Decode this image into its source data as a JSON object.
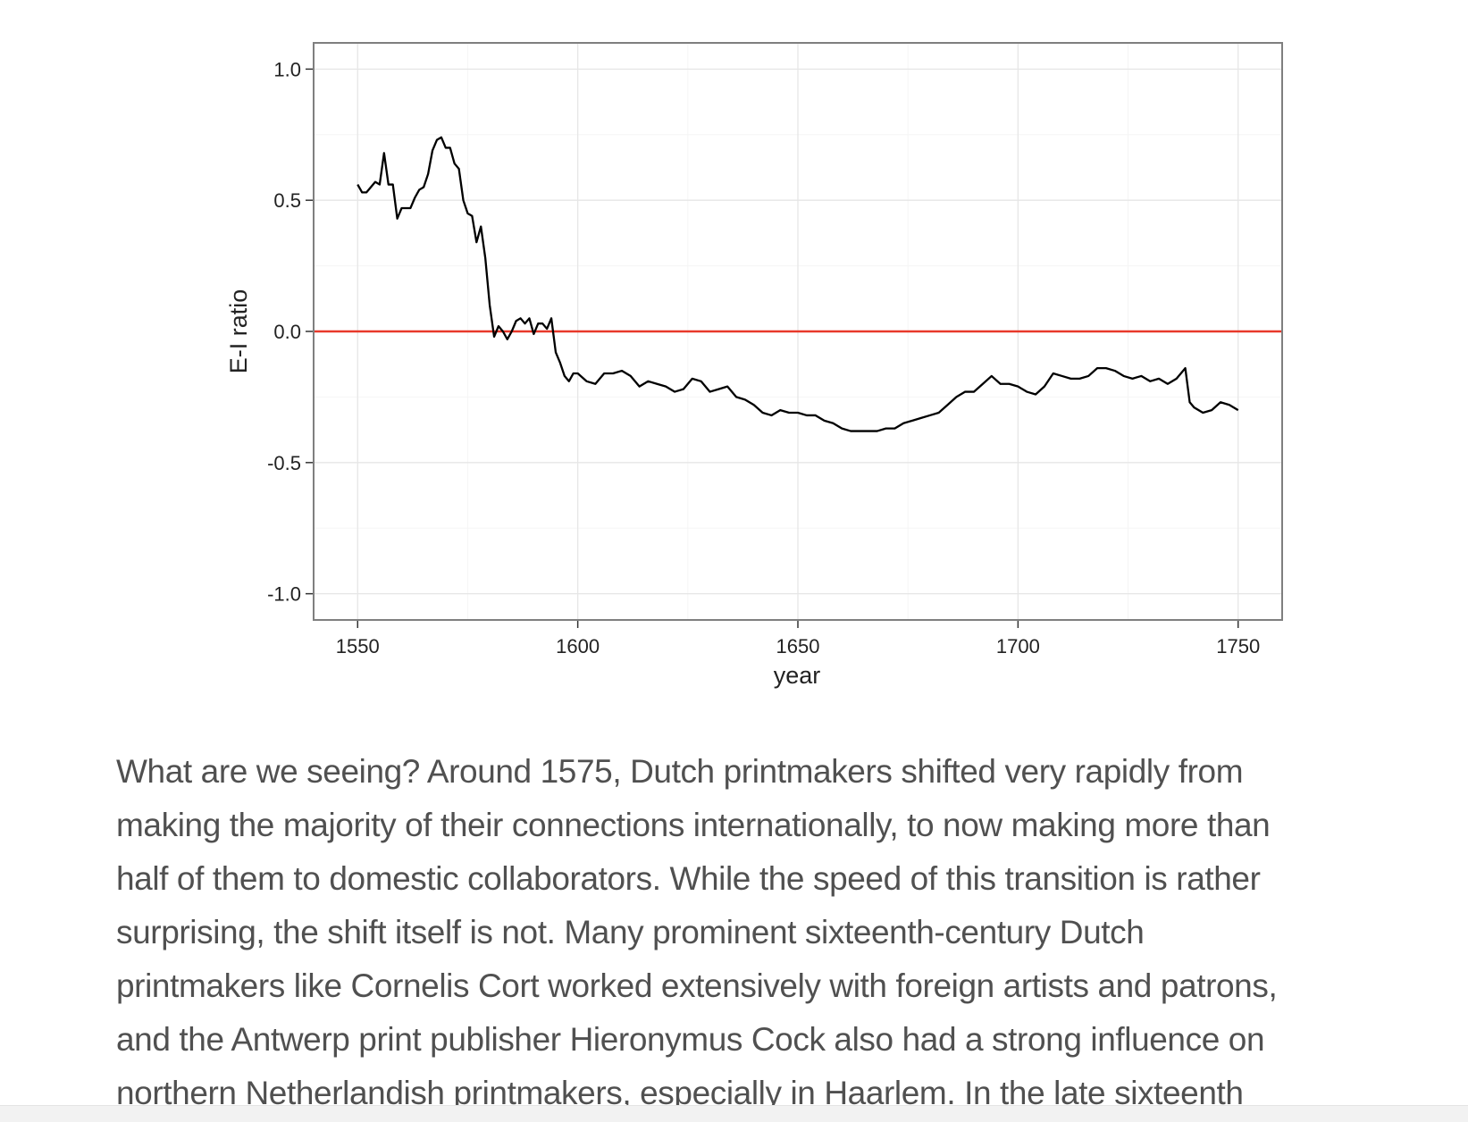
{
  "chart_data": {
    "type": "line",
    "ylabel": "E-I ratio",
    "xlabel": "year",
    "xlim": [
      1540,
      1760
    ],
    "ylim": [
      -1.1,
      1.1
    ],
    "xticks": [
      1550,
      1600,
      1650,
      1700,
      1750
    ],
    "yticks": [
      {
        "value": 1,
        "label": "1.0"
      },
      {
        "value": 0.5,
        "label": "0.5"
      },
      {
        "value": 0,
        "label": "0.0"
      },
      {
        "value": -0.5,
        "label": "-0.5"
      },
      {
        "value": -1,
        "label": "-1.0"
      }
    ],
    "grid": true,
    "color": "#000000",
    "hline": {
      "value": 0,
      "color": "#e8392a"
    },
    "x": [
      1550,
      1551,
      1552,
      1553,
      1554,
      1555,
      1556,
      1557,
      1558,
      1559,
      1560,
      1561,
      1562,
      1563,
      1564,
      1565,
      1566,
      1567,
      1568,
      1569,
      1570,
      1571,
      1572,
      1573,
      1574,
      1575,
      1576,
      1577,
      1578,
      1579,
      1580,
      1581,
      1582,
      1583,
      1584,
      1585,
      1586,
      1587,
      1588,
      1589,
      1590,
      1591,
      1592,
      1593,
      1594,
      1595,
      1596,
      1597,
      1598,
      1599,
      1600,
      1602,
      1604,
      1606,
      1608,
      1610,
      1612,
      1614,
      1616,
      1618,
      1620,
      1622,
      1624,
      1626,
      1628,
      1630,
      1632,
      1634,
      1636,
      1638,
      1640,
      1642,
      1644,
      1646,
      1648,
      1650,
      1652,
      1654,
      1656,
      1658,
      1660,
      1662,
      1664,
      1666,
      1668,
      1670,
      1672,
      1674,
      1676,
      1678,
      1680,
      1682,
      1684,
      1686,
      1688,
      1690,
      1692,
      1694,
      1696,
      1698,
      1700,
      1702,
      1704,
      1706,
      1708,
      1710,
      1712,
      1714,
      1716,
      1718,
      1720,
      1722,
      1724,
      1726,
      1728,
      1730,
      1732,
      1734,
      1736,
      1738,
      1739,
      1740,
      1742,
      1744,
      1746,
      1748,
      1750
    ],
    "values": [
      0.56,
      0.53,
      0.53,
      0.55,
      0.57,
      0.56,
      0.68,
      0.56,
      0.56,
      0.43,
      0.47,
      0.47,
      0.47,
      0.51,
      0.54,
      0.55,
      0.6,
      0.69,
      0.73,
      0.74,
      0.7,
      0.7,
      0.64,
      0.62,
      0.5,
      0.45,
      0.44,
      0.34,
      0.4,
      0.28,
      0.1,
      -0.02,
      0.02,
      0.0,
      -0.03,
      0.0,
      0.04,
      0.05,
      0.03,
      0.05,
      -0.01,
      0.03,
      0.03,
      0.01,
      0.05,
      -0.08,
      -0.12,
      -0.17,
      -0.19,
      -0.16,
      -0.16,
      -0.19,
      -0.2,
      -0.16,
      -0.16,
      -0.15,
      -0.17,
      -0.21,
      -0.19,
      -0.2,
      -0.21,
      -0.23,
      -0.22,
      -0.18,
      -0.19,
      -0.23,
      -0.22,
      -0.21,
      -0.25,
      -0.26,
      -0.28,
      -0.31,
      -0.32,
      -0.3,
      -0.31,
      -0.31,
      -0.32,
      -0.32,
      -0.34,
      -0.35,
      -0.37,
      -0.38,
      -0.38,
      -0.38,
      -0.38,
      -0.37,
      -0.37,
      -0.35,
      -0.34,
      -0.33,
      -0.32,
      -0.31,
      -0.28,
      -0.25,
      -0.23,
      -0.23,
      -0.2,
      -0.17,
      -0.2,
      -0.2,
      -0.21,
      -0.23,
      -0.24,
      -0.21,
      -0.16,
      -0.17,
      -0.18,
      -0.18,
      -0.17,
      -0.14,
      -0.14,
      -0.15,
      -0.17,
      -0.18,
      -0.17,
      -0.19,
      -0.18,
      -0.2,
      -0.18,
      -0.14,
      -0.27,
      -0.29,
      -0.31,
      -0.3,
      -0.27,
      -0.28,
      -0.3
    ]
  },
  "article": {
    "lines": [
      "What are we seeing? Around 1575, Dutch printmakers shifted very rapidly from",
      "making the majority of their connections internationally, to now making more than",
      "half of them to domestic collaborators. While the speed of this transition is rather",
      "surprising, the shift itself is not. Many prominent sixteenth-century Dutch",
      "printmakers like Cornelis Cort worked extensively with foreign artists and patrons,",
      "and the Antwerp print publisher Hieronymus Cock also had a strong influence on",
      "northern Netherlandish printmakers, especially in Haarlem. In the late sixteenth"
    ]
  }
}
